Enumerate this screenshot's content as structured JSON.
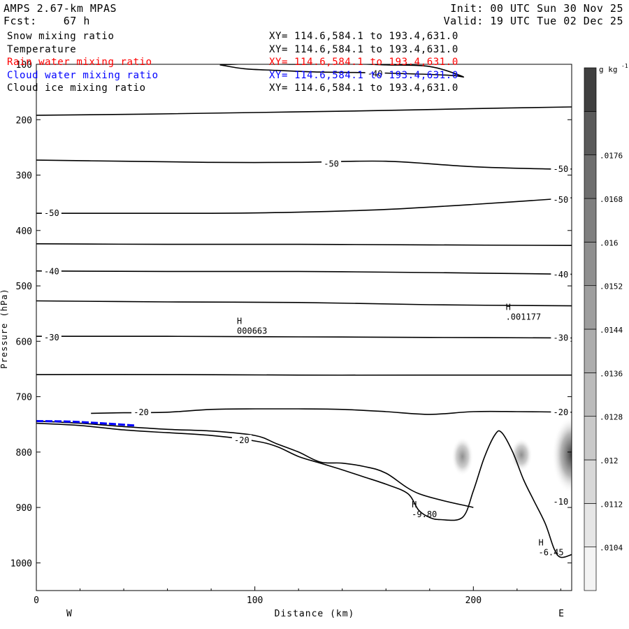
{
  "header": {
    "model": "AMPS 2.67-km MPAS",
    "forecast_label": "Fcst:",
    "forecast_hours": "67 h",
    "init": "Init: 00 UTC Sun 30 Nov 25",
    "valid": "Valid: 19 UTC Tue 02 Dec 25"
  },
  "legend": [
    {
      "name": "Snow mixing ratio",
      "xy": "XY= 114.6,584.1 to 193.4,631.0",
      "color": "#000000"
    },
    {
      "name": "Temperature",
      "xy": "XY= 114.6,584.1 to 193.4,631.0",
      "color": "#000000"
    },
    {
      "name": "Rain water mixing ratio",
      "xy": "XY= 114.6,584.1 to 193.4,631.0",
      "color": "#ff0000"
    },
    {
      "name": "Cloud water mixing ratio",
      "xy": "XY= 114.6,584.1 to 193.4,631.0",
      "color": "#0000ff"
    },
    {
      "name": "Cloud ice mixing ratio",
      "xy": "XY= 114.6,584.1 to 193.4,631.0",
      "color": "#000000"
    }
  ],
  "chart_data": {
    "type": "contour-cross-section",
    "xlabel": "Distance (km)",
    "ylabel": "Pressure (hPa)",
    "xlim": [
      0,
      245
    ],
    "ylim": [
      1050,
      100
    ],
    "x_ticks": [
      "0",
      "100",
      "200"
    ],
    "x_tick_values": [
      0,
      100,
      200
    ],
    "y_ticks": [
      "100",
      "200",
      "300",
      "400",
      "500",
      "600",
      "700",
      "800",
      "900",
      "1000"
    ],
    "y_tick_values": [
      100,
      200,
      300,
      400,
      500,
      600,
      700,
      800,
      900,
      1000
    ],
    "left_end_label": "W",
    "right_end_label": "E",
    "colorbar": {
      "unit": "g kg",
      "unit_exponent": "-1",
      "levels": [
        ".0104",
        ".0112",
        ".012",
        ".0128",
        ".0136",
        ".0144",
        ".0152",
        ".016",
        ".0168",
        ".0176"
      ],
      "colors": [
        "#f4f4f4",
        "#e6e6e6",
        "#d8d8d8",
        "#c9c9c9",
        "#bbbbbb",
        "#adadad",
        "#9e9e9e",
        "#8f8f8f",
        "#7f7f7f",
        "#6e6e6e",
        "#5a5a5a",
        "#404040"
      ]
    },
    "temperature_contours": [
      {
        "label": "-40",
        "x": [
          84,
          100,
          120,
          140,
          160,
          180,
          195,
          190,
          170,
          150,
          130,
          110,
          95,
          84
        ],
        "p": [
          101,
          99,
          100,
          99,
          101,
          104,
          122,
          120,
          117,
          115,
          114,
          111,
          108,
          101
        ]
      },
      {
        "label": "",
        "x": [
          0,
          50,
          100,
          150,
          200,
          245
        ],
        "p": [
          192,
          190,
          187,
          184,
          180,
          177
        ]
      },
      {
        "label": "-50",
        "x": [
          0,
          40,
          80,
          120,
          160,
          200,
          235,
          245
        ],
        "p": [
          273,
          275,
          277,
          277,
          275,
          285,
          289,
          289
        ]
      },
      {
        "label": "-50",
        "x": [
          0,
          40,
          80,
          120,
          160,
          200,
          245
        ],
        "p": [
          369,
          369,
          369,
          367,
          362,
          353,
          341
        ]
      },
      {
        "label": "",
        "x": [
          0,
          60,
          120,
          180,
          245
        ],
        "p": [
          424,
          425,
          425,
          426,
          427
        ]
      },
      {
        "label": "-40",
        "x": [
          0,
          60,
          120,
          180,
          245
        ],
        "p": [
          473,
          474,
          474,
          476,
          479
        ]
      },
      {
        "label": "",
        "x": [
          0,
          60,
          120,
          180,
          245
        ],
        "p": [
          527,
          529,
          530,
          534,
          536
        ]
      },
      {
        "label": "-30",
        "x": [
          0,
          60,
          120,
          180,
          245
        ],
        "p": [
          591,
          591,
          592,
          593,
          594
        ]
      },
      {
        "label": "",
        "x": [
          0,
          60,
          120,
          180,
          245
        ],
        "p": [
          660,
          660,
          661,
          661,
          661
        ]
      },
      {
        "label": "-20",
        "x": [
          25,
          40,
          60,
          80,
          100,
          120,
          140,
          160,
          180,
          200,
          220,
          245
        ],
        "p": [
          730,
          729,
          728,
          723,
          722,
          722,
          723,
          727,
          732,
          727,
          727,
          728
        ]
      },
      {
        "label": "-20",
        "x": [
          0,
          20,
          40,
          60,
          80,
          100,
          110,
          120,
          130,
          140,
          150,
          160,
          175,
          200
        ],
        "p": [
          744,
          748,
          754,
          759,
          762,
          770,
          785,
          800,
          818,
          820,
          826,
          838,
          875,
          900
        ]
      }
    ],
    "terrain": {
      "x": [
        0,
        20,
        40,
        60,
        80,
        100,
        110,
        120,
        130,
        140,
        150,
        160,
        170,
        175,
        180,
        185,
        195,
        200,
        205,
        210,
        213,
        218,
        223,
        228,
        233,
        237,
        240,
        245
      ],
      "p": [
        748,
        752,
        760,
        765,
        770,
        780,
        790,
        808,
        820,
        832,
        845,
        858,
        875,
        905,
        918,
        922,
        918,
        870,
        810,
        768,
        765,
        800,
        850,
        890,
        930,
        975,
        990,
        985
      ]
    },
    "high_labels": [
      {
        "symbol": "H",
        "value": "000663",
        "x": 95,
        "p": 585
      },
      {
        "symbol": "H",
        "value": ".001177",
        "x": 218,
        "p": 560
      },
      {
        "symbol": "H",
        "value": "-9.80",
        "x": 175,
        "p": 916
      },
      {
        "symbol": "H",
        "value": "-6.45",
        "x": 233,
        "p": 985
      }
    ],
    "shaded_regions": [
      {
        "x": 195,
        "p": 808,
        "rx": 5,
        "rp": 35,
        "level": 7
      },
      {
        "x": 222,
        "p": 805,
        "rx": 5,
        "rp": 30,
        "level": 7
      },
      {
        "x": 245,
        "p": 805,
        "rx": 9,
        "rp": 70,
        "level": 11
      }
    ]
  }
}
